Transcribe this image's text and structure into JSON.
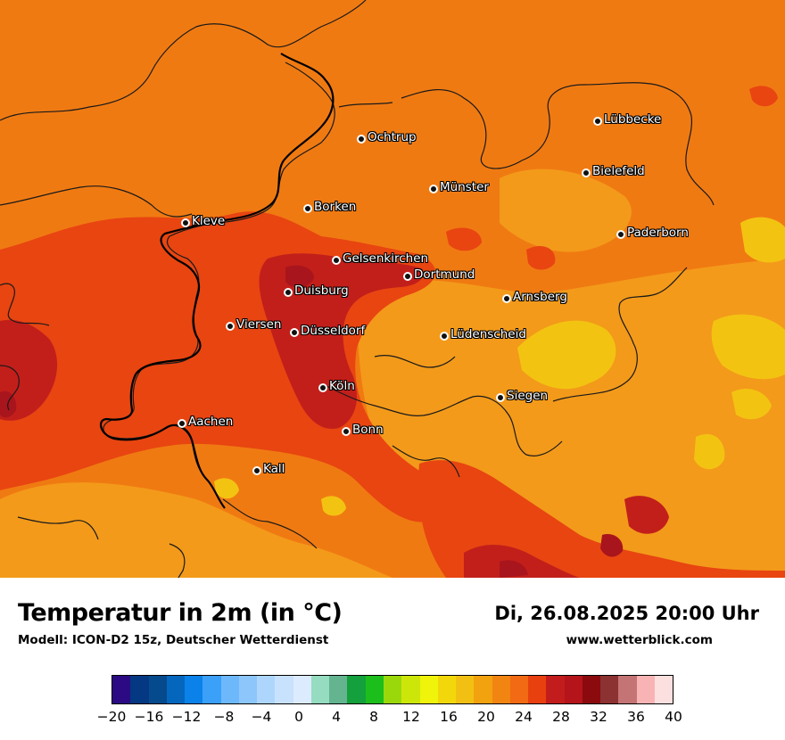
{
  "map": {
    "cities": [
      {
        "name": "Lübbecke"
      },
      {
        "name": "Ochtrup"
      },
      {
        "name": "Bielefeld"
      },
      {
        "name": "Münster"
      },
      {
        "name": "Borken"
      },
      {
        "name": "Kleve"
      },
      {
        "name": "Paderborn"
      },
      {
        "name": "Gelsenkirchen"
      },
      {
        "name": "Dortmund"
      },
      {
        "name": "Duisburg"
      },
      {
        "name": "Arnsberg"
      },
      {
        "name": "Viersen"
      },
      {
        "name": "Düsseldorf"
      },
      {
        "name": "Lüdenscheid"
      },
      {
        "name": "Köln"
      },
      {
        "name": "Siegen"
      },
      {
        "name": "Aachen"
      },
      {
        "name": "Bonn"
      },
      {
        "name": "Kall"
      }
    ],
    "colors": {
      "background": "#f07a12",
      "warm_orange": "#f39a1a",
      "yellow": "#f3c312",
      "red_orange": "#e84511",
      "dark_red": "#c21f1b",
      "deep_red": "#a9151c",
      "border_line": "#1a1a1a"
    }
  },
  "footer": {
    "title": "Temperatur in 2m (in °C)",
    "model": "Modell: ICON-D2 15z, Deutscher Wetterdienst",
    "valid_time": "Di, 26.08.2025 20:00 Uhr",
    "source": "www.wetterblick.com"
  },
  "colorbar": {
    "colors": [
      "#2c0a84",
      "#053882",
      "#044a8c",
      "#0566be",
      "#0a82ea",
      "#3aa0f8",
      "#6cb8fa",
      "#8cc6fb",
      "#aed6fc",
      "#c8e2fd",
      "#dcebfe",
      "#96dcc0",
      "#64b490",
      "#14a03c",
      "#1cbe1c",
      "#9ad80c",
      "#cce60a",
      "#f0f40a",
      "#f2d80a",
      "#f2c012",
      "#f2a20e",
      "#f28412",
      "#f26a14",
      "#e8400e",
      "#c21c1c",
      "#b4141a",
      "#8a0a0e",
      "#8c3232",
      "#c47474",
      "#f8b4b4",
      "#fce0e0"
    ],
    "ticks": [
      "−20",
      "−16",
      "−12",
      "−8",
      "−4",
      "0",
      "4",
      "8",
      "12",
      "16",
      "20",
      "24",
      "28",
      "32",
      "36",
      "40"
    ]
  }
}
